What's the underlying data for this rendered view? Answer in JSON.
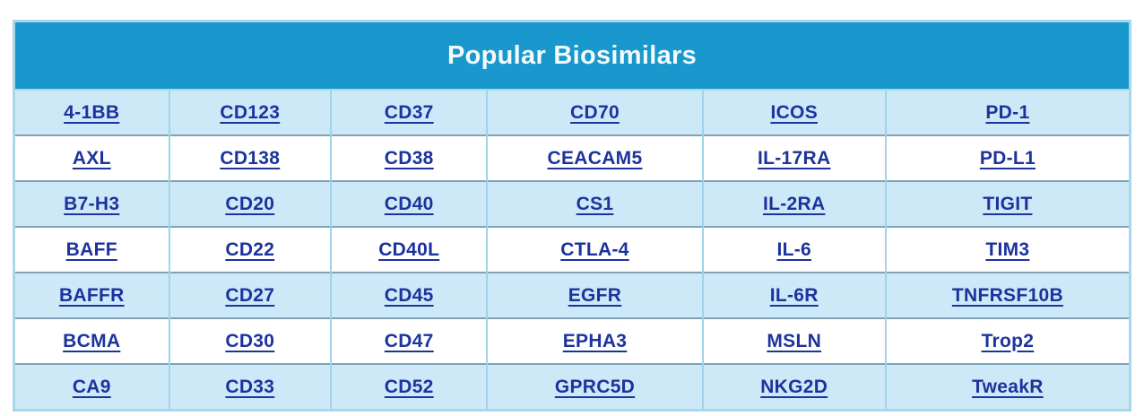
{
  "title": "Popular Biosimilars",
  "colors": {
    "header_bg": "#1898cd",
    "header_text": "#f4fbfe",
    "row_alt_bg": "#cde9f8",
    "row_bg": "#ffffff",
    "link_text": "#1c339e",
    "outer_border": "#a6d7ec",
    "vertical_border": "#9ed3ea",
    "horizontal_border": "#7fa2b6"
  },
  "table": {
    "column_count": 6,
    "rows": [
      [
        "4-1BB",
        "CD123",
        "CD37",
        "CD70",
        "ICOS",
        "PD-1"
      ],
      [
        "AXL",
        "CD138",
        "CD38",
        "CEACAM5",
        "IL-17RA",
        "PD-L1"
      ],
      [
        "B7-H3",
        "CD20",
        "CD40",
        "CS1",
        "IL-2RA",
        "TIGIT"
      ],
      [
        "BAFF",
        "CD22",
        "CD40L",
        "CTLA-4",
        "IL-6",
        "TIM3"
      ],
      [
        "BAFFR",
        "CD27",
        "CD45",
        "EGFR",
        "IL-6R",
        "TNFRSF10B"
      ],
      [
        "BCMA",
        "CD30",
        "CD47",
        "EPHA3",
        "MSLN",
        "Trop2"
      ],
      [
        "CA9",
        "CD33",
        "CD52",
        "GPRC5D",
        "NKG2D",
        "TweakR"
      ]
    ]
  }
}
